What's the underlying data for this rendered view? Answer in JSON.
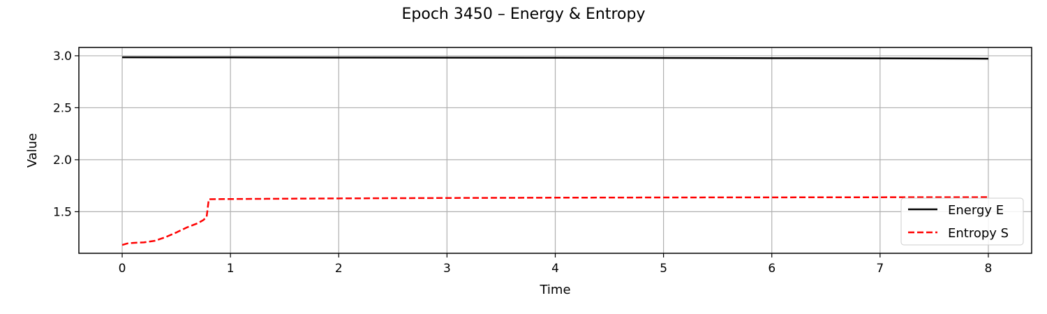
{
  "chart_data": {
    "type": "line",
    "title": "Epoch 3450 – Energy & Entropy",
    "xlabel": "Time",
    "ylabel": "Value",
    "xlim": [
      -0.4,
      8.4
    ],
    "ylim": [
      1.1,
      3.08
    ],
    "xticks": [
      0,
      1,
      2,
      3,
      4,
      5,
      6,
      7,
      8
    ],
    "xtick_labels": [
      "0",
      "1",
      "2",
      "3",
      "4",
      "5",
      "6",
      "7",
      "8"
    ],
    "yticks": [
      1.5,
      2.0,
      2.5,
      3.0
    ],
    "ytick_labels": [
      "1.5",
      "2.0",
      "2.5",
      "3.0"
    ],
    "grid": true,
    "legend_position": "lower-right",
    "series": [
      {
        "name": "Energy E",
        "color": "#000000",
        "style": "solid",
        "x": [
          0,
          1,
          2,
          3,
          4,
          5,
          6,
          7,
          8
        ],
        "y": [
          2.985,
          2.984,
          2.983,
          2.982,
          2.981,
          2.979,
          2.977,
          2.975,
          2.972
        ]
      },
      {
        "name": "Entropy S",
        "color": "#ff0000",
        "style": "dashed",
        "x": [
          0,
          0.05,
          0.1,
          0.2,
          0.3,
          0.4,
          0.5,
          0.6,
          0.7,
          0.75,
          0.78,
          0.8,
          1,
          2,
          3,
          4,
          5,
          6,
          7,
          8
        ],
        "y": [
          1.18,
          1.195,
          1.2,
          1.205,
          1.22,
          1.255,
          1.3,
          1.35,
          1.39,
          1.42,
          1.45,
          1.62,
          1.622,
          1.628,
          1.632,
          1.635,
          1.637,
          1.638,
          1.639,
          1.64
        ]
      }
    ]
  }
}
